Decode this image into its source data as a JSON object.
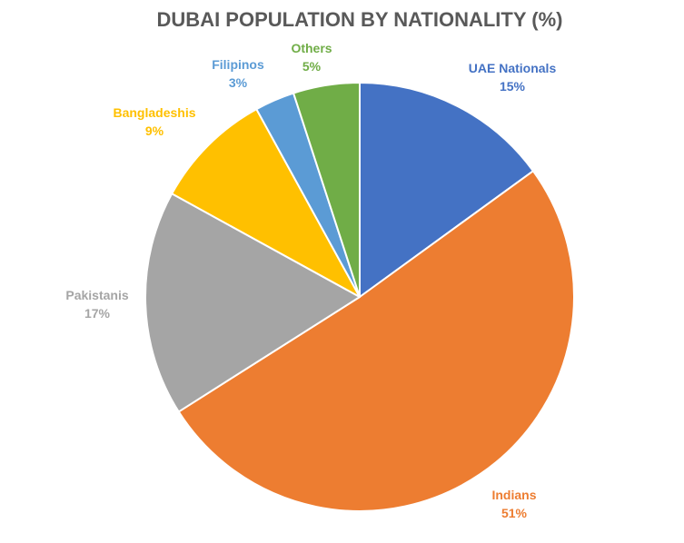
{
  "chart_data": {
    "type": "pie",
    "title": "DUBAI POPULATION BY NATIONALITY (%)",
    "legend": "none",
    "start_angle_deg": 0,
    "direction": "clockwise",
    "slices": [
      {
        "name": "UAE Nationals",
        "value": 15,
        "value_label": "15%",
        "color": "#4472C4"
      },
      {
        "name": "Indians",
        "value": 51,
        "value_label": "51%",
        "color": "#ED7D31"
      },
      {
        "name": "Pakistanis",
        "value": 17,
        "value_label": "17%",
        "color": "#A5A5A5"
      },
      {
        "name": "Bangladeshis",
        "value": 9,
        "value_label": "9%",
        "color": "#FFC000"
      },
      {
        "name": "Filipinos",
        "value": 3,
        "value_label": "3%",
        "color": "#5B9BD5"
      },
      {
        "name": "Others",
        "value": 5,
        "value_label": "5%",
        "color": "#70AD47"
      }
    ]
  }
}
